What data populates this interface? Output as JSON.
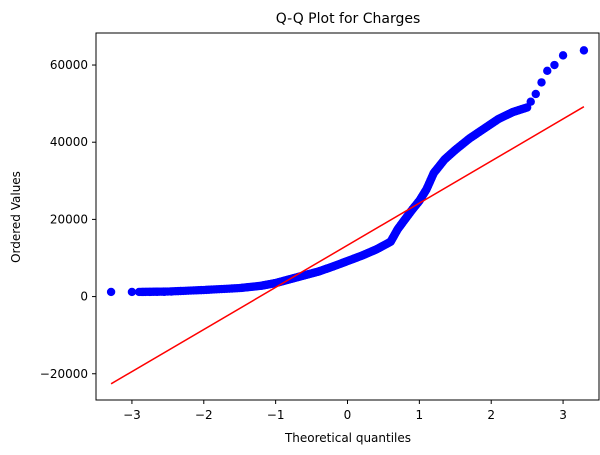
{
  "chart_data": {
    "type": "scatter",
    "title": "Q-Q Plot for Charges",
    "xlabel": "Theoretical quantiles",
    "ylabel": "Ordered Values",
    "xlim": [
      -3.5,
      3.5
    ],
    "ylim": [
      -26800,
      68300
    ],
    "xticks": [
      -3,
      -2,
      -1,
      0,
      1,
      2,
      3
    ],
    "yticks": [
      -20000,
      0,
      20000,
      40000,
      60000
    ],
    "xtick_labels": [
      "−3",
      "−2",
      "−1",
      "0",
      "1",
      "2",
      "3"
    ],
    "ytick_labels": [
      "−20000",
      "0",
      "20000",
      "40000",
      "60000"
    ],
    "grid": false,
    "colors": {
      "points": "#0000ff",
      "fit_line": "#ff0000",
      "axes": "#000000",
      "background": "#ffffff"
    },
    "fit_line": {
      "x": [
        -3.29,
        3.29
      ],
      "y": [
        -22600,
        49200
      ]
    },
    "quantile_curve": {
      "x": [
        -2.9,
        -2.5,
        -2.0,
        -1.5,
        -1.2,
        -1.0,
        -0.8,
        -0.6,
        -0.4,
        -0.2,
        0.0,
        0.2,
        0.4,
        0.6,
        0.7,
        0.8,
        0.9,
        1.0,
        1.1,
        1.2,
        1.35,
        1.5,
        1.7,
        1.9,
        2.1,
        2.3,
        2.5
      ],
      "y": [
        1200,
        1300,
        1700,
        2200,
        2800,
        3500,
        4500,
        5500,
        6500,
        7800,
        9200,
        10600,
        12200,
        14200,
        17500,
        20000,
        22500,
        24800,
        27800,
        32000,
        35500,
        38000,
        41000,
        43500,
        46000,
        47800,
        49000
      ]
    },
    "points": {
      "x": [
        -3.29,
        -3.0,
        -2.85,
        -2.75,
        -2.65,
        -2.55,
        -2.45,
        2.55,
        2.62,
        2.7,
        2.78,
        2.88,
        3.0,
        3.29
      ],
      "y": [
        1200,
        1200,
        1200,
        1200,
        1250,
        1250,
        1300,
        50500,
        52500,
        55500,
        58500,
        60000,
        62500,
        63800
      ]
    }
  }
}
